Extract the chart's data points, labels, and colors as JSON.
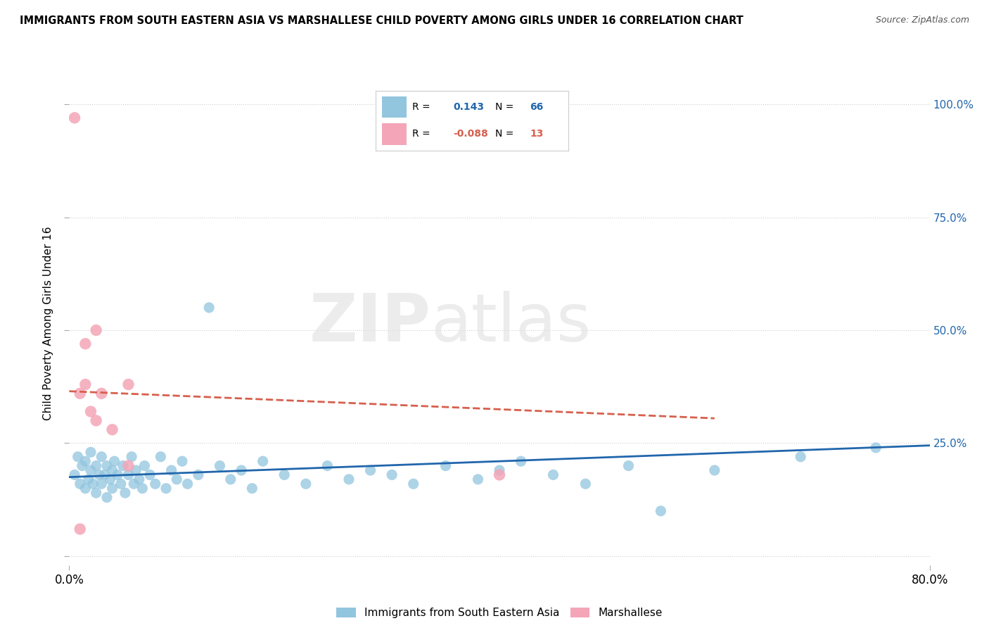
{
  "title": "IMMIGRANTS FROM SOUTH EASTERN ASIA VS MARSHALLESE CHILD POVERTY AMONG GIRLS UNDER 16 CORRELATION CHART",
  "source": "Source: ZipAtlas.com",
  "ylabel": "Child Poverty Among Girls Under 16",
  "xlim": [
    0.0,
    0.8
  ],
  "ylim": [
    -0.02,
    1.05
  ],
  "legend_R1": "0.143",
  "legend_N1": "66",
  "legend_R2": "-0.088",
  "legend_N2": "13",
  "blue_color": "#92c5de",
  "pink_color": "#f4a6b8",
  "blue_line_color": "#2166ac",
  "pink_line_color": "#d6604d",
  "right_tick_color": "#2166ac",
  "watermark_text": "ZIPatlas",
  "blue_scatter_x": [
    0.005,
    0.008,
    0.01,
    0.012,
    0.015,
    0.015,
    0.018,
    0.02,
    0.02,
    0.022,
    0.025,
    0.025,
    0.028,
    0.03,
    0.03,
    0.033,
    0.035,
    0.035,
    0.038,
    0.04,
    0.04,
    0.042,
    0.045,
    0.048,
    0.05,
    0.052,
    0.055,
    0.058,
    0.06,
    0.062,
    0.065,
    0.068,
    0.07,
    0.075,
    0.08,
    0.085,
    0.09,
    0.095,
    0.1,
    0.105,
    0.11,
    0.12,
    0.13,
    0.14,
    0.15,
    0.16,
    0.17,
    0.18,
    0.2,
    0.22,
    0.24,
    0.26,
    0.28,
    0.3,
    0.32,
    0.35,
    0.38,
    0.4,
    0.42,
    0.45,
    0.48,
    0.52,
    0.55,
    0.6,
    0.68,
    0.75
  ],
  "blue_scatter_y": [
    0.18,
    0.22,
    0.16,
    0.2,
    0.15,
    0.21,
    0.17,
    0.19,
    0.23,
    0.16,
    0.14,
    0.2,
    0.18,
    0.22,
    0.16,
    0.18,
    0.13,
    0.2,
    0.17,
    0.19,
    0.15,
    0.21,
    0.18,
    0.16,
    0.2,
    0.14,
    0.18,
    0.22,
    0.16,
    0.19,
    0.17,
    0.15,
    0.2,
    0.18,
    0.16,
    0.22,
    0.15,
    0.19,
    0.17,
    0.21,
    0.16,
    0.18,
    0.55,
    0.2,
    0.17,
    0.19,
    0.15,
    0.21,
    0.18,
    0.16,
    0.2,
    0.17,
    0.19,
    0.18,
    0.16,
    0.2,
    0.17,
    0.19,
    0.21,
    0.18,
    0.16,
    0.2,
    0.1,
    0.19,
    0.22,
    0.24
  ],
  "pink_scatter_x": [
    0.005,
    0.01,
    0.015,
    0.02,
    0.025,
    0.03,
    0.04,
    0.055,
    0.01,
    0.015,
    0.025,
    0.4,
    0.055
  ],
  "pink_scatter_y": [
    0.97,
    0.36,
    0.47,
    0.32,
    0.3,
    0.36,
    0.28,
    0.2,
    0.06,
    0.38,
    0.5,
    0.18,
    0.38
  ],
  "blue_line_x0": 0.0,
  "blue_line_x1": 0.8,
  "blue_line_y0": 0.175,
  "blue_line_y1": 0.245,
  "pink_line_x0": 0.0,
  "pink_line_x1": 0.6,
  "pink_line_y0": 0.365,
  "pink_line_y1": 0.305
}
